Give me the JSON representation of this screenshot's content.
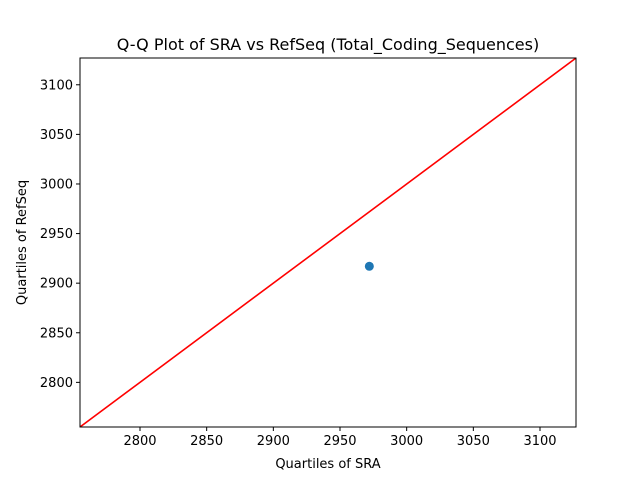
{
  "chart_data": {
    "type": "scatter",
    "title": "Q-Q Plot of SRA vs RefSeq (Total_Coding_Sequences)",
    "xlabel": "Quartiles of SRA",
    "ylabel": "Quartiles of RefSeq",
    "xlim": [
      2755,
      3127
    ],
    "ylim": [
      2755,
      3127
    ],
    "xticks": [
      2800,
      2850,
      2900,
      2950,
      3000,
      3050,
      3100
    ],
    "yticks": [
      2800,
      2850,
      2900,
      2950,
      3000,
      3050,
      3100
    ],
    "points": [
      {
        "x": 2972,
        "y": 2917
      }
    ],
    "reference_line": {
      "x": [
        2755,
        3127
      ],
      "y": [
        2755,
        3127
      ],
      "color": "#ff0000"
    },
    "point_color": "#1f77b4",
    "grid": false
  }
}
